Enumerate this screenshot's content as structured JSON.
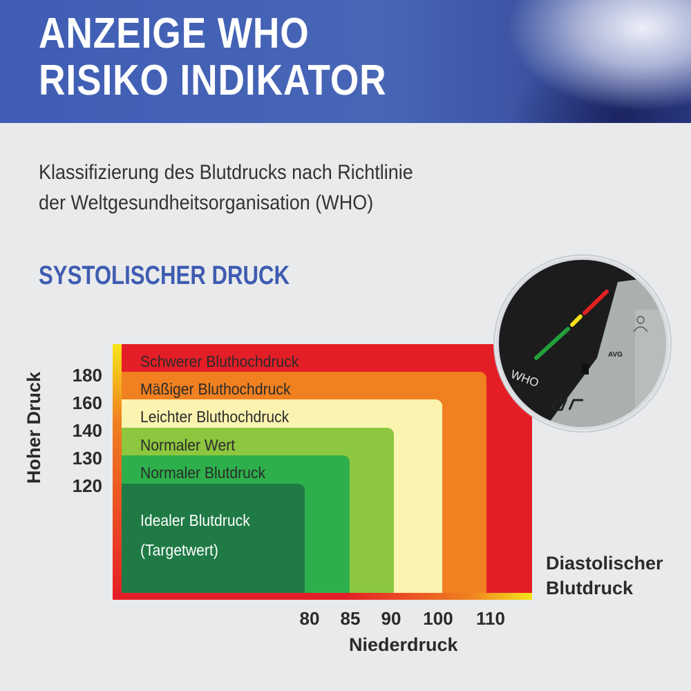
{
  "header": {
    "title_line1": "ANZEIGE WHO",
    "title_line2": "RISIKO INDIKATOR"
  },
  "subtitle": {
    "line1": "Klassifizierung des Blutdrucks nach Richtlinie",
    "line2": "der Weltgesundheitsorganisation (WHO)"
  },
  "section_title": "SYSTOLISCHER DRUCK",
  "chart": {
    "y_axis_label": "Hoher Druck",
    "y_ticks": [
      "180",
      "160",
      "140",
      "130",
      "120"
    ],
    "x_axis_label": "Niederdruck",
    "x_ticks": [
      "80",
      "85",
      "90",
      "100",
      "110"
    ],
    "diastolic_label_line1": "Diastolischer",
    "diastolic_label_line2": "Blutdruck",
    "zones": [
      {
        "label": "Schwerer Bluthochdruck",
        "color": "#e41e26"
      },
      {
        "label": "Mäßiger Bluthochdruck",
        "color": "#f08020"
      },
      {
        "label": "Leichter Bluthochdruck",
        "color": "#fbf3b0"
      },
      {
        "label": "Normaler Wert",
        "color": "#8dc63f"
      },
      {
        "label": "Normaler Blutdruck",
        "color": "#2db04b"
      },
      {
        "label": "Idealer Blutdruck",
        "label2": "(Targetwert)",
        "color": "#1f7a45"
      }
    ]
  },
  "device": {
    "who_text": "WHO",
    "avg_text": "AVG",
    "indicator_colors": [
      "#e42020",
      "#f4e11a",
      "#22a03a"
    ]
  }
}
